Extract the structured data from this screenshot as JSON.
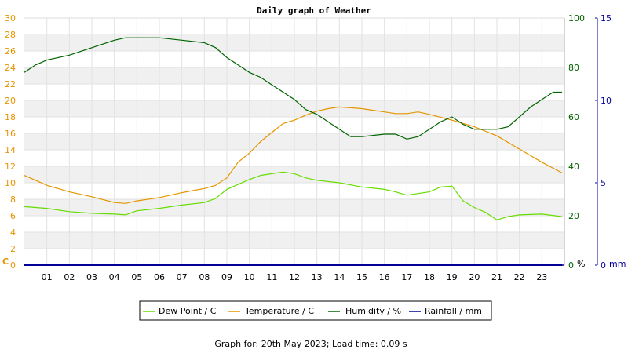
{
  "chart_data": {
    "type": "line",
    "title": "Daily graph of Weather",
    "footer": "Graph for: 20th May 2023; Load time: 0.09 s",
    "x": {
      "range": [
        0,
        24
      ],
      "tick_labels": [
        "01",
        "02",
        "03",
        "04",
        "05",
        "06",
        "07",
        "08",
        "09",
        "10",
        "11",
        "12",
        "13",
        "14",
        "15",
        "16",
        "17",
        "18",
        "19",
        "20",
        "21",
        "22",
        "23"
      ]
    },
    "y_axes": {
      "celsius": {
        "unit_label": "C",
        "range": [
          0,
          30
        ],
        "tick_labels": [
          "0",
          "2",
          "4",
          "6",
          "8",
          "10",
          "12",
          "14",
          "16",
          "18",
          "20",
          "22",
          "24",
          "26",
          "28",
          "30"
        ],
        "color": "#e69500"
      },
      "percent": {
        "unit_label": "%",
        "range": [
          0,
          100
        ],
        "tick_labels": [
          "0",
          "20",
          "40",
          "60",
          "80",
          "100"
        ],
        "color": "#006400"
      },
      "mm": {
        "unit_label": "mm",
        "range": [
          0,
          15
        ],
        "tick_labels": [
          "0",
          "5",
          "10",
          "15"
        ],
        "color": "#000099"
      }
    },
    "series": [
      {
        "name": "Dew Point / C",
        "color": "#66dd00",
        "axis": "celsius",
        "x": [
          0,
          1,
          2,
          3,
          4,
          4.5,
          5,
          6,
          7,
          8,
          8.5,
          9,
          9.5,
          10,
          10.5,
          11,
          11.5,
          12,
          12.5,
          13,
          14,
          15,
          16,
          16.5,
          17,
          18,
          18.5,
          19,
          19.5,
          20,
          20.5,
          21,
          21.5,
          22,
          23,
          23.9
        ],
        "y": [
          7.1,
          6.9,
          6.5,
          6.3,
          6.2,
          6.1,
          6.6,
          6.9,
          7.3,
          7.6,
          8.1,
          9.2,
          9.8,
          10.4,
          10.9,
          11.1,
          11.3,
          11.1,
          10.6,
          10.3,
          10.0,
          9.5,
          9.2,
          8.9,
          8.5,
          8.9,
          9.5,
          9.6,
          7.8,
          7.0,
          6.4,
          5.5,
          5.9,
          6.1,
          6.2,
          5.9
        ]
      },
      {
        "name": "Temperature / C",
        "color": "#e69500",
        "axis": "celsius",
        "x": [
          0,
          1,
          2,
          3,
          4,
          4.5,
          5,
          6,
          7,
          8,
          8.5,
          9,
          9.5,
          10,
          10.5,
          11,
          11.5,
          12,
          12.5,
          13,
          13.5,
          14,
          14.5,
          15,
          15.5,
          16,
          16.5,
          17,
          17.5,
          18,
          19,
          20,
          21,
          22,
          23,
          23.9
        ],
        "y": [
          10.9,
          9.7,
          8.9,
          8.3,
          7.6,
          7.5,
          7.8,
          8.2,
          8.8,
          9.3,
          9.7,
          10.6,
          12.5,
          13.6,
          15.0,
          16.1,
          17.2,
          17.6,
          18.2,
          18.7,
          19.0,
          19.2,
          19.1,
          19.0,
          18.8,
          18.6,
          18.4,
          18.4,
          18.6,
          18.3,
          17.6,
          16.8,
          15.7,
          14.1,
          12.5,
          11.2
        ]
      },
      {
        "name": "Humidity / %",
        "color": "#006400",
        "axis": "percent",
        "x": [
          0,
          0.5,
          1,
          2,
          3,
          4,
          4.5,
          5,
          6,
          7,
          8,
          8.5,
          9,
          9.5,
          10,
          10.5,
          11,
          11.5,
          12,
          12.5,
          13,
          13.5,
          14,
          14.5,
          15,
          16,
          16.5,
          17,
          17.5,
          18,
          18.5,
          19,
          19.5,
          20,
          20.5,
          21,
          21.5,
          22,
          22.5,
          23,
          23.5,
          23.9
        ],
        "y": [
          78,
          81,
          83,
          85,
          88,
          91,
          92,
          92,
          92,
          91,
          90,
          88,
          84,
          81,
          78,
          76,
          73,
          70,
          67,
          63,
          61,
          58,
          55,
          52,
          52,
          53,
          53,
          51,
          52,
          55,
          58,
          60,
          57,
          55,
          55,
          55,
          56,
          60,
          64,
          67,
          70,
          70
        ]
      },
      {
        "name": "Rainfall / mm",
        "color": "#000099",
        "axis": "mm",
        "x": [
          0,
          23.9
        ],
        "y": [
          0,
          0
        ]
      }
    ],
    "grid": true,
    "legend_position": "bottom"
  }
}
